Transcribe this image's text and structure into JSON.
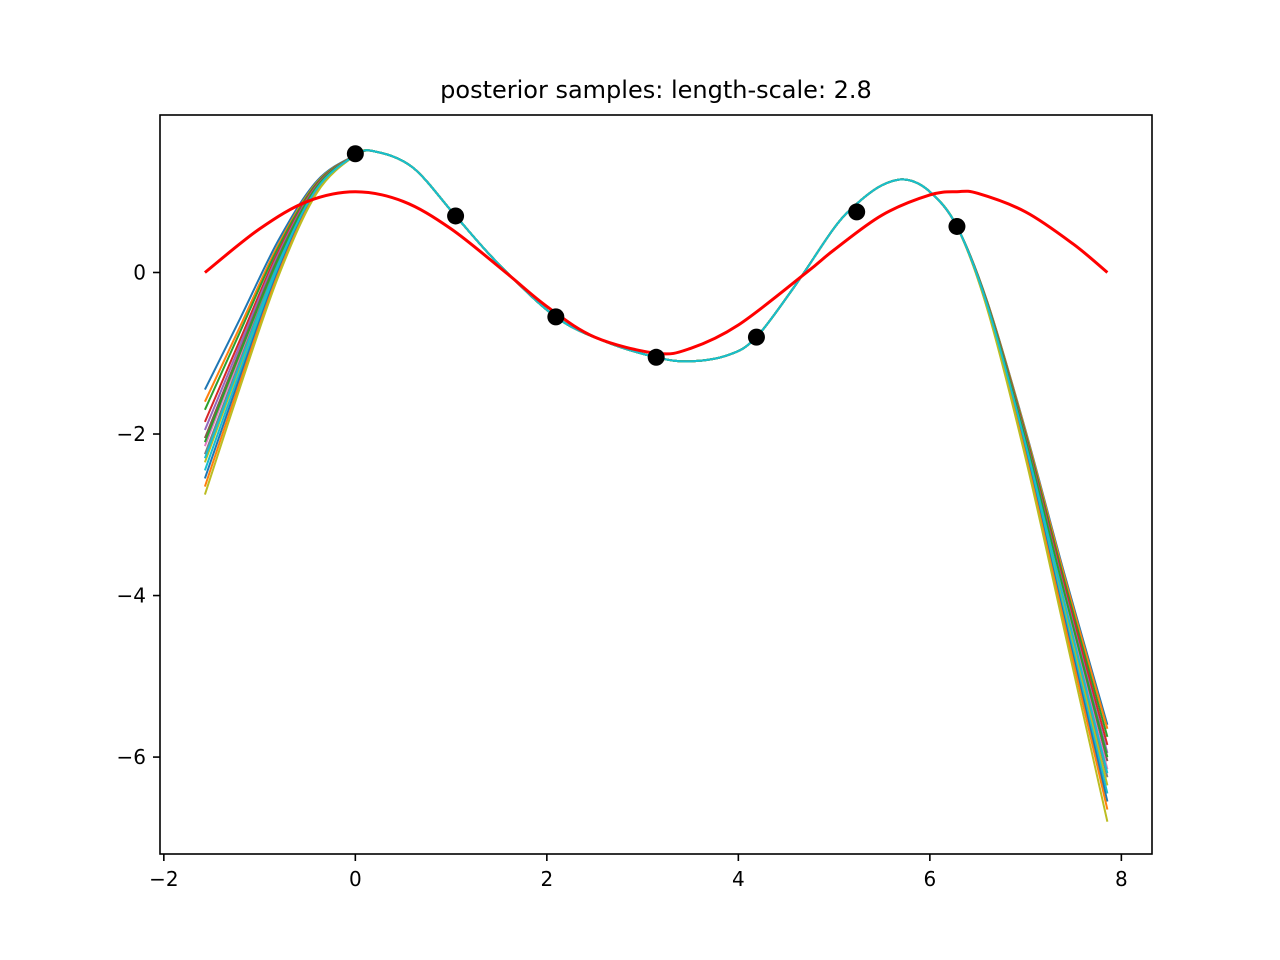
{
  "chart_data": {
    "type": "line",
    "title": "posterior samples: length-scale: 2.8",
    "xlabel": "",
    "ylabel": "",
    "xlim": [
      -2.04,
      8.32
    ],
    "ylim": [
      -7.2,
      1.95
    ],
    "x_ticks": [
      -2,
      0,
      2,
      4,
      6,
      8
    ],
    "x_tick_labels": [
      "−2",
      "0",
      "2",
      "4",
      "6",
      "8"
    ],
    "y_ticks": [
      0,
      -2,
      -4,
      -6
    ],
    "y_tick_labels": [
      "0",
      "−2",
      "−4",
      "−6"
    ],
    "grid": false,
    "legend": "none",
    "true_function": {
      "x": [
        -1.571,
        -1.0,
        -0.5,
        0.0,
        0.5,
        1.0,
        1.571,
        2.0,
        2.5,
        3.142,
        3.5,
        4.0,
        4.712,
        5.0,
        5.5,
        6.0,
        6.283,
        6.5,
        7.0,
        7.5,
        7.854
      ],
      "y": [
        0.0,
        0.54,
        0.88,
        1.0,
        0.88,
        0.54,
        0.0,
        -0.42,
        -0.8,
        -1.0,
        -0.94,
        -0.65,
        0.0,
        0.28,
        0.71,
        0.96,
        1.0,
        0.98,
        0.75,
        0.35,
        0.0
      ],
      "color": "#ff0000"
    },
    "observations": {
      "x": [
        0.0,
        1.047,
        2.094,
        3.142,
        4.189,
        5.236,
        6.283
      ],
      "y": [
        1.47,
        0.7,
        -0.55,
        -1.05,
        -0.8,
        0.75,
        0.57
      ],
      "color": "#000000"
    },
    "posterior_mean": {
      "x": [
        -1.571,
        -1.2,
        -0.8,
        -0.4,
        0.0,
        0.2,
        0.6,
        1.047,
        1.5,
        2.094,
        2.6,
        3.142,
        3.5,
        3.9,
        4.189,
        4.6,
        5.0,
        5.236,
        5.5,
        5.75,
        6.0,
        6.283,
        6.6,
        7.0,
        7.4,
        7.854
      ],
      "y": [
        -2.2,
        -1.05,
        0.15,
        1.05,
        1.45,
        1.5,
        1.3,
        0.7,
        0.1,
        -0.55,
        -0.85,
        -1.05,
        -1.1,
        -1.02,
        -0.8,
        -0.15,
        0.55,
        0.85,
        1.08,
        1.15,
        1.0,
        0.57,
        -0.4,
        -2.1,
        -4.0,
        -6.1
      ]
    },
    "sample_endpoints": {
      "left": [
        -1.45,
        -1.6,
        -1.7,
        -1.85,
        -1.95,
        -2.05,
        -2.15,
        -2.25,
        -2.35,
        -2.45,
        -2.55,
        -2.65,
        -2.75,
        -2.1,
        -2.3
      ],
      "right": [
        -5.6,
        -5.65,
        -5.75,
        -5.85,
        -5.95,
        -6.05,
        -6.15,
        -6.25,
        -6.35,
        -6.45,
        -6.55,
        -6.65,
        -6.8,
        -6.0,
        -6.2
      ]
    },
    "sample_colors": [
      "#1f77b4",
      "#ff7f0e",
      "#2ca02c",
      "#d62728",
      "#9467bd",
      "#8c564b",
      "#e377c2",
      "#7f7f7f",
      "#bcbd22",
      "#17becf",
      "#1f77b4",
      "#ff7f0e",
      "#bcbd22",
      "#2ca02c",
      "#17becf"
    ]
  }
}
